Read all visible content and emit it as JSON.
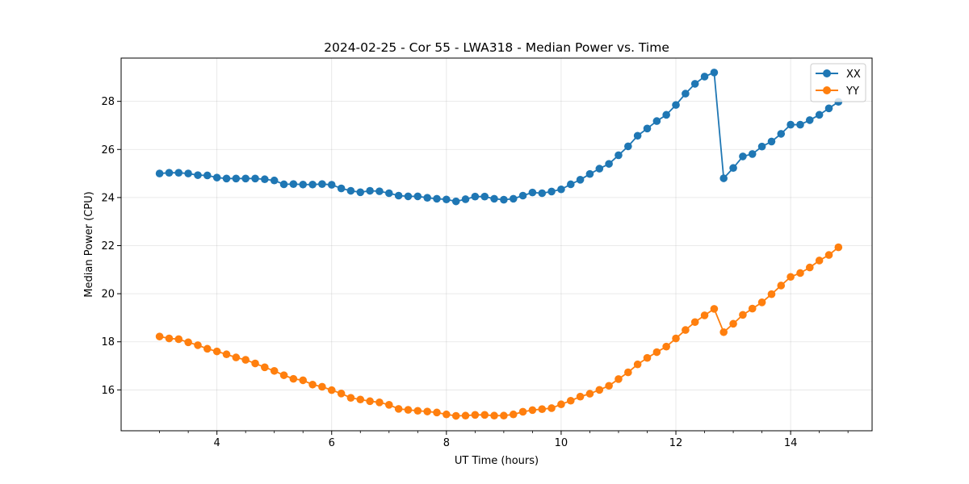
{
  "chart_data": {
    "type": "line",
    "title": "2024-02-25 - Cor 55 - LWA318 - Median Power vs. Time",
    "xlabel": "UT Time (hours)",
    "ylabel": "Median Power (CPU)",
    "xlim": [
      2.33,
      15.42
    ],
    "ylim": [
      14.3,
      29.8
    ],
    "xticks": [
      4,
      6,
      8,
      10,
      12,
      14
    ],
    "yticks": [
      16,
      18,
      20,
      22,
      24,
      26,
      28
    ],
    "grid": true,
    "legend_position": "top-right",
    "x": [
      3.0,
      3.167,
      3.333,
      3.5,
      3.667,
      3.833,
      4.0,
      4.167,
      4.333,
      4.5,
      4.667,
      4.833,
      5.0,
      5.167,
      5.333,
      5.5,
      5.667,
      5.833,
      6.0,
      6.167,
      6.333,
      6.5,
      6.667,
      6.833,
      7.0,
      7.167,
      7.333,
      7.5,
      7.667,
      7.833,
      8.0,
      8.167,
      8.333,
      8.5,
      8.667,
      8.833,
      9.0,
      9.167,
      9.333,
      9.5,
      9.667,
      9.833,
      10.0,
      10.167,
      10.333,
      10.5,
      10.667,
      10.833,
      11.0,
      11.167,
      11.333,
      11.5,
      11.667,
      11.833,
      12.0,
      12.167,
      12.333,
      12.5,
      12.667,
      12.833,
      13.0,
      13.167,
      13.333,
      13.5,
      13.667,
      13.833,
      14.0,
      14.167,
      14.333,
      14.5,
      14.667,
      14.833
    ],
    "series": [
      {
        "name": "XX",
        "color": "#1f77b4",
        "values": [
          25.0,
          25.03,
          25.03,
          25.0,
          24.93,
          24.92,
          24.83,
          24.79,
          24.79,
          24.79,
          24.79,
          24.76,
          24.71,
          24.55,
          24.56,
          24.54,
          24.54,
          24.56,
          24.53,
          24.38,
          24.28,
          24.22,
          24.28,
          24.26,
          24.18,
          24.08,
          24.05,
          24.05,
          23.99,
          23.95,
          23.92,
          23.84,
          23.93,
          24.04,
          24.04,
          23.95,
          23.91,
          23.95,
          24.08,
          24.21,
          24.18,
          24.25,
          24.34,
          24.55,
          24.74,
          24.98,
          25.2,
          25.4,
          25.76,
          26.13,
          26.57,
          26.87,
          27.18,
          27.44,
          27.85,
          28.32,
          28.73,
          29.03,
          29.2,
          24.8,
          25.23,
          25.71,
          25.81,
          26.12,
          26.33,
          26.65,
          27.03,
          27.03,
          27.22,
          27.44,
          27.71,
          27.98
        ]
      },
      {
        "name": "YY",
        "color": "#ff7f0e",
        "values": [
          18.22,
          18.14,
          18.11,
          17.98,
          17.86,
          17.71,
          17.6,
          17.48,
          17.35,
          17.25,
          17.1,
          16.94,
          16.79,
          16.61,
          16.46,
          16.4,
          16.22,
          16.13,
          15.99,
          15.85,
          15.67,
          15.6,
          15.53,
          15.48,
          15.38,
          15.21,
          15.17,
          15.13,
          15.1,
          15.06,
          14.98,
          14.92,
          14.93,
          14.96,
          14.96,
          14.93,
          14.93,
          14.98,
          15.09,
          15.16,
          15.2,
          15.24,
          15.4,
          15.55,
          15.72,
          15.84,
          16.0,
          16.17,
          16.45,
          16.73,
          17.06,
          17.33,
          17.57,
          17.8,
          18.14,
          18.49,
          18.82,
          19.1,
          19.37,
          18.4,
          18.75,
          19.12,
          19.38,
          19.64,
          19.98,
          20.34,
          20.7,
          20.86,
          21.09,
          21.38,
          21.61,
          21.93
        ]
      }
    ]
  }
}
